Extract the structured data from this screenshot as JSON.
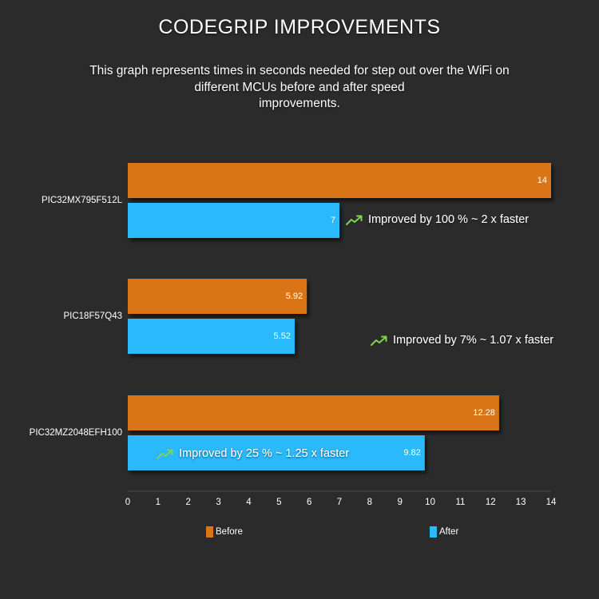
{
  "chart_data": {
    "type": "bar",
    "orientation": "horizontal",
    "title": "CODEGRIP IMPROVEMENTS",
    "subtitle": "This graph represents times in seconds needed for step out over the WiFi on\ndifferent MCUs before and after speed\nimprovements.",
    "categories": [
      "PIC32MX795F512L",
      "PIC18F57Q43",
      "PIC32MZ2048EFH100"
    ],
    "series": [
      {
        "name": "Before",
        "values": [
          14,
          5.92,
          12.28
        ],
        "color": "#d97514"
      },
      {
        "name": "After",
        "values": [
          7,
          5.52,
          9.82
        ],
        "color": "#2ab9fb"
      }
    ],
    "xlim": [
      0,
      14
    ],
    "xticks": [
      0,
      1,
      2,
      3,
      4,
      5,
      6,
      7,
      8,
      9,
      10,
      11,
      12,
      13,
      14
    ],
    "value_labels": {
      "Before": [
        "14",
        "5.92",
        "12.28"
      ],
      "After": [
        "7",
        "5.52",
        "9.82"
      ]
    },
    "annotations": [
      {
        "text": "Improved by 100 % ~ 2 x faster",
        "category": "PIC32MX795F512L"
      },
      {
        "text": "Improved by 7% ~ 1.07 x faster",
        "category": "PIC18F57Q43"
      },
      {
        "text": "Improved by 25 % ~ 1.25 x faster",
        "category": "PIC32MZ2048EFH100"
      }
    ],
    "annotation_icon": "trending-up-icon",
    "annotation_icon_color": "#7cd84a",
    "legend": {
      "placement": "bottom",
      "entries": [
        "Before",
        "After"
      ]
    },
    "grid": false,
    "background": "#2b2b2b"
  }
}
